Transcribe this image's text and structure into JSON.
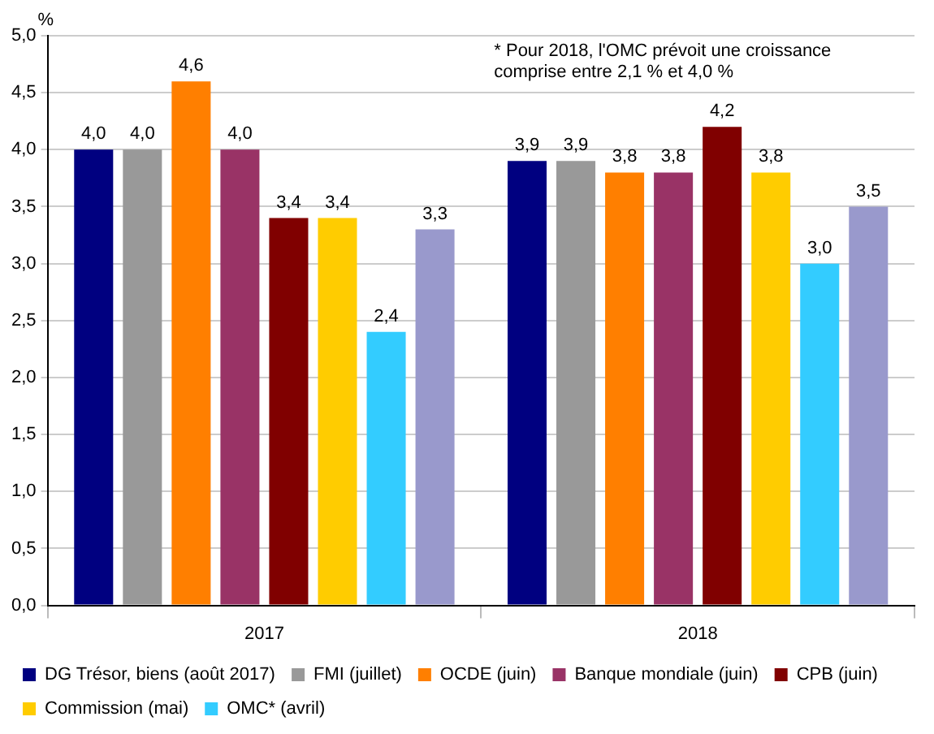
{
  "chart_data": {
    "type": "bar",
    "ylabel": "%",
    "annotations": [
      "* Pour 2018, l'OMC prévoit une croissance comprise entre 2,1 % et 4,0 %"
    ],
    "categories": [
      "2017",
      "2018"
    ],
    "series": [
      {
        "name": "DG Trésor, biens (août 2017)",
        "color": "#000080",
        "values": [
          4.0,
          3.9
        ],
        "value_labels": [
          "4,0",
          "3,9"
        ]
      },
      {
        "name": "FMI (juillet)",
        "color": "#999999",
        "values": [
          4.0,
          3.9
        ],
        "value_labels": [
          "4,0",
          "3,9"
        ]
      },
      {
        "name": "OCDE (juin)",
        "color": "#ff7f00",
        "values": [
          4.6,
          3.8
        ],
        "value_labels": [
          "4,6",
          "3,8"
        ]
      },
      {
        "name": "Banque mondiale (juin)",
        "color": "#993366",
        "values": [
          4.0,
          3.8
        ],
        "value_labels": [
          "4,0",
          "3,8"
        ]
      },
      {
        "name": "CPB (juin)",
        "color": "#800000",
        "values": [
          3.4,
          4.2
        ],
        "value_labels": [
          "3,4",
          "4,2"
        ]
      },
      {
        "name": "Commission (mai)",
        "color": "#ffcc00",
        "values": [
          3.4,
          3.8
        ],
        "value_labels": [
          "3,4",
          "3,8"
        ]
      },
      {
        "name": "OMC* (avril)",
        "color": "#33ccff",
        "values": [
          2.4,
          3.0
        ],
        "value_labels": [
          "2,4",
          "3,0"
        ]
      },
      {
        "color": "#9999cc",
        "values": [
          3.3,
          3.5
        ],
        "value_labels": [
          "3,3",
          "3,5"
        ]
      }
    ],
    "ylim": [
      0,
      5
    ],
    "yticks": [
      {
        "value": 0,
        "label": "0,0"
      },
      {
        "value": 0.5,
        "label": "0,5"
      },
      {
        "value": 1,
        "label": "1,0"
      },
      {
        "value": 1.5,
        "label": "1,5"
      },
      {
        "value": 2,
        "label": "2,0"
      },
      {
        "value": 2.5,
        "label": "2,5"
      },
      {
        "value": 3,
        "label": "3,0"
      },
      {
        "value": 3.5,
        "label": "3,5"
      },
      {
        "value": 4,
        "label": "4,0"
      },
      {
        "value": 4.5,
        "label": "4,5"
      },
      {
        "value": 5,
        "label": "5,0"
      }
    ],
    "grid": "y",
    "legend": "bottom"
  }
}
